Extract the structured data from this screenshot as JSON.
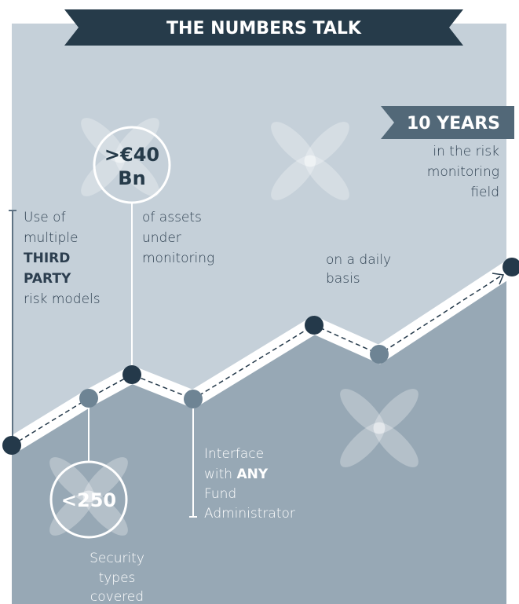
{
  "header": {
    "title": "THE NUMBERS TALK"
  },
  "callouts": [
    {
      "figure": [
        ">€40",
        "Bn"
      ],
      "lines": [
        "of assets",
        "under",
        "monitoring"
      ]
    },
    {
      "badge": "10 YEARS",
      "lines": [
        "in the risk",
        "monitoring",
        "field"
      ]
    },
    {
      "lines": [
        "Use of",
        "multiple",
        "THIRD",
        "PARTY",
        "risk models"
      ]
    },
    {
      "lines": [
        "on a daily",
        "basis"
      ]
    },
    {
      "lines": [
        "Interface",
        [
          "with ",
          "ANY"
        ],
        "Fund",
        "Administrator"
      ]
    },
    {
      "figure": [
        "<250"
      ],
      "lines": [
        "Security",
        "types",
        "covered"
      ]
    }
  ]
}
